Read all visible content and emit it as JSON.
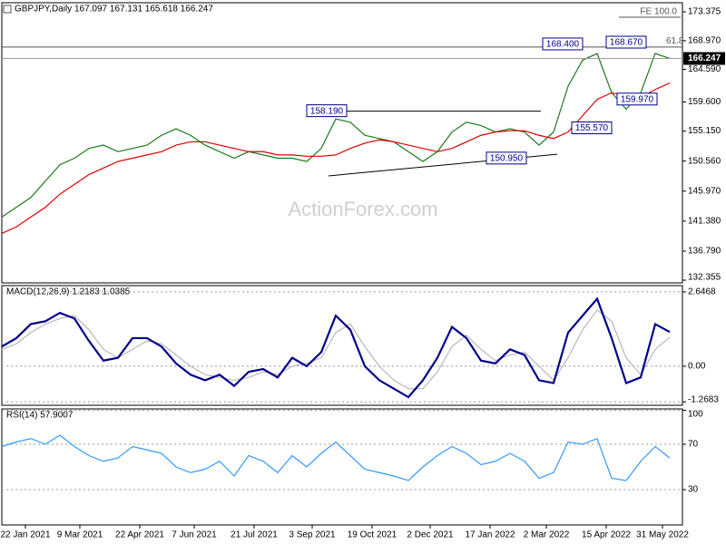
{
  "header": {
    "title": "GBPJPY,Daily  167.097 167.131 165.618 166.247"
  },
  "watermark": "ActionForex.com",
  "chart_data": [
    {
      "type": "line",
      "grid": false,
      "xlim": [
        0,
        375
      ],
      "ylim": [
        131.94,
        174.77
      ],
      "yticks": [
        173.375,
        {
          "value": 168.97,
          "label": "168.970"
        },
        {
          "value": 164.59,
          "label": "164.590"
        },
        {
          "value": 159.6,
          "label": "159.600"
        },
        {
          "value": 155.15,
          "label": "155.150"
        },
        {
          "value": 150.56,
          "label": "150.560"
        },
        {
          "value": 145.97,
          "label": "145.970"
        },
        {
          "value": 141.38,
          "label": "141.380"
        },
        {
          "value": 136.79,
          "label": "136.790"
        },
        132.355
      ],
      "x": [
        0,
        8,
        16,
        24,
        32,
        40,
        48,
        56,
        64,
        72,
        80,
        88,
        96,
        104,
        112,
        120,
        128,
        136,
        144,
        152,
        160,
        168,
        176,
        184,
        192,
        200,
        208,
        216,
        224,
        232,
        240,
        248,
        256,
        264,
        272,
        280,
        288,
        296,
        304,
        312,
        320,
        328,
        336,
        344,
        352,
        360,
        368
      ],
      "series": [
        {
          "color": "#1b7a1b",
          "values": [
            142,
            143.5,
            145,
            147.5,
            150,
            151,
            152.5,
            153,
            152,
            152.5,
            153,
            154.5,
            155.5,
            154.5,
            153,
            152,
            151,
            152,
            151.5,
            151,
            151,
            150.5,
            152.5,
            157,
            156.5,
            154.5,
            154,
            153.5,
            152,
            150.5,
            152,
            155,
            156.5,
            156,
            155,
            155.5,
            155,
            153,
            155,
            162,
            166,
            167,
            161,
            158.5,
            161,
            167,
            166.247
          ]
        },
        {
          "color": "#e00000",
          "values": [
            139.5,
            140.5,
            142,
            143.5,
            145.5,
            147,
            148.5,
            149.5,
            150.5,
            151,
            151.5,
            152,
            153,
            153.5,
            153.5,
            153,
            152.5,
            152,
            152,
            151.5,
            151.5,
            151.3,
            151.3,
            151.5,
            152.5,
            153.3,
            153.8,
            153.5,
            153,
            152.5,
            152,
            152.5,
            153.5,
            154.5,
            155,
            155.2,
            155.2,
            154.5,
            154,
            155,
            157.5,
            160,
            161,
            160.5,
            160.3,
            161.5,
            162.5
          ]
        }
      ],
      "level_lines": [
        168.0
      ],
      "trend_lines": [
        {
          "x": [
            184,
            297
          ],
          "y": [
            158.19,
            158.19
          ]
        },
        {
          "x": [
            180,
            306
          ],
          "y": [
            148.3,
            151.6
          ]
        }
      ],
      "annotations": [
        {
          "label": "168.400",
          "x": 298,
          "y": 168.4
        },
        {
          "label": "168.670",
          "x": 333,
          "y": 168.67
        },
        {
          "label": "158.190",
          "x": 168,
          "y": 158.19
        },
        {
          "label": "150.950",
          "x": 267,
          "y": 150.95
        },
        {
          "label": "155.570",
          "x": 314,
          "y": 155.57
        },
        {
          "label": "159.970",
          "x": 339,
          "y": 159.97
        }
      ],
      "notes": [
        {
          "label": "FE 100.0",
          "x": 340,
          "y": 173.1
        },
        {
          "label": "61.8",
          "x": 366,
          "y": 168.6
        }
      ]
    },
    {
      "type": "line",
      "title": "MACD(12,26,9) 1.2183 1.0385",
      "grid": true,
      "xlim": [
        0,
        375
      ],
      "ylim": [
        -1.39,
        2.87
      ],
      "yticks": [
        2.6468,
        {
          "value": 0,
          "label": "0.00"
        },
        -1.2683
      ],
      "x": [
        0,
        8,
        16,
        24,
        32,
        40,
        48,
        56,
        64,
        72,
        80,
        88,
        96,
        104,
        112,
        120,
        128,
        136,
        144,
        152,
        160,
        168,
        176,
        184,
        192,
        200,
        208,
        216,
        224,
        232,
        240,
        248,
        256,
        264,
        272,
        280,
        288,
        296,
        304,
        312,
        320,
        328,
        336,
        344,
        352,
        360,
        368
      ],
      "series": [
        {
          "color": "#b8b8b8",
          "values": [
            0.6,
            0.8,
            1.2,
            1.5,
            1.7,
            1.8,
            1.3,
            0.6,
            0.3,
            0.6,
            0.9,
            0.8,
            0.4,
            0,
            -0.3,
            -0.4,
            -0.5,
            -0.4,
            -0.2,
            -0.3,
            0,
            0.1,
            0.3,
            1.2,
            1.5,
            0.7,
            0,
            -0.5,
            -0.8,
            -0.8,
            -0.2,
            0.7,
            1.1,
            0.6,
            0.2,
            0.4,
            0.5,
            0,
            -0.5,
            0.3,
            1.3,
            2,
            1.6,
            0.3,
            -0.3,
            0.6,
            1.0385
          ]
        },
        {
          "color": "#00008b",
          "values": [
            0.7,
            1,
            1.5,
            1.6,
            1.9,
            1.7,
            0.9,
            0.2,
            0.3,
            1,
            1,
            0.7,
            0.1,
            -0.3,
            -0.5,
            -0.3,
            -0.7,
            -0.2,
            -0.1,
            -0.4,
            0.3,
            0,
            0.5,
            1.8,
            1.3,
            0,
            -0.5,
            -0.8,
            -1.1,
            -0.5,
            0.3,
            1.4,
            1,
            0.2,
            0.1,
            0.6,
            0.4,
            -0.5,
            -0.6,
            1.2,
            1.8,
            2.4,
            1,
            -0.6,
            -0.4,
            1.5,
            1.2183
          ]
        }
      ]
    },
    {
      "type": "line",
      "title": "RSI(14) 57.9007",
      "grid": true,
      "xlim": [
        0,
        375
      ],
      "ylim": [
        -1.2,
        101.2
      ],
      "yticks": [
        100,
        70,
        30
      ],
      "xticks": [
        {
          "value": 13,
          "label": "22 Jan 2021"
        },
        {
          "value": 43,
          "label": "9 Mar 2021"
        },
        {
          "value": 76,
          "label": "22 Apr 2021"
        },
        {
          "value": 106,
          "label": "7 Jun 2021"
        },
        {
          "value": 139,
          "label": "21 Jul 2021"
        },
        {
          "value": 171,
          "label": "3 Sep 2021"
        },
        {
          "value": 204,
          "label": "19 Oct 2021"
        },
        {
          "value": 236,
          "label": "2 Dec 2021"
        },
        {
          "value": 269,
          "label": "17 Jan 2022"
        },
        {
          "value": 300,
          "label": "2 Mar 2022"
        },
        {
          "value": 333,
          "label": "15 Apr 2022"
        },
        {
          "value": 364,
          "label": "31 May 2022"
        }
      ],
      "x": [
        0,
        8,
        16,
        24,
        32,
        40,
        48,
        56,
        64,
        72,
        80,
        88,
        96,
        104,
        112,
        120,
        128,
        136,
        144,
        152,
        160,
        168,
        176,
        184,
        192,
        200,
        208,
        216,
        224,
        232,
        240,
        248,
        256,
        264,
        272,
        280,
        288,
        296,
        304,
        312,
        320,
        328,
        336,
        344,
        352,
        360,
        368
      ],
      "series": [
        {
          "color": "#3399ff",
          "values": [
            68,
            72,
            75,
            70,
            78,
            68,
            60,
            55,
            58,
            68,
            65,
            62,
            50,
            45,
            48,
            55,
            42,
            60,
            55,
            45,
            60,
            50,
            62,
            72,
            60,
            48,
            45,
            42,
            38,
            50,
            60,
            68,
            62,
            52,
            55,
            62,
            55,
            40,
            45,
            72,
            70,
            75,
            40,
            38,
            55,
            68,
            57.9007
          ]
        }
      ]
    }
  ]
}
